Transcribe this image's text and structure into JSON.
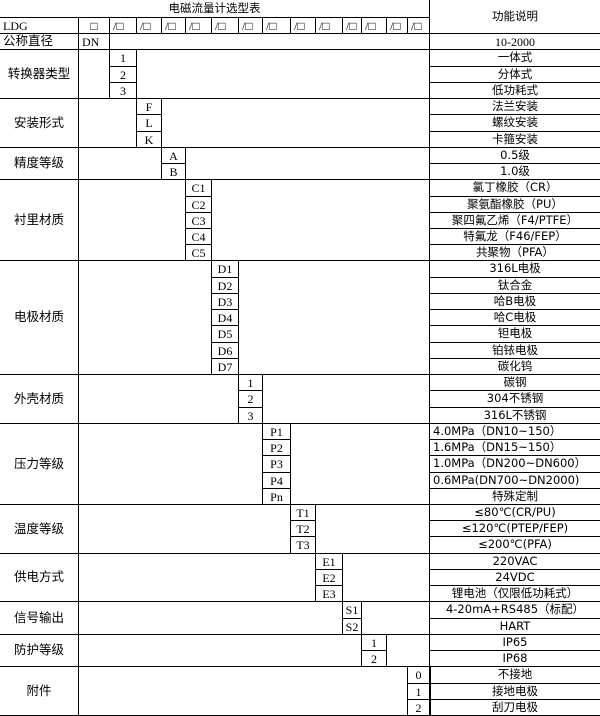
{
  "title": "电磁流量计选型表",
  "function_header": "功能说明",
  "model_row": {
    "model": "LDG",
    "first_box": "□",
    "boxes": [
      "/□",
      "/□",
      "/□",
      "/□",
      "/□",
      "/□",
      "/□",
      "/□",
      "/□",
      "/□",
      "/□",
      "/□",
      "/□"
    ]
  },
  "nominal_diameter": {
    "label": "公称直径",
    "code": "DN",
    "description": "10-2000"
  },
  "groups": [
    {
      "label": "转换器类型",
      "codes": [
        "1",
        "2",
        "3"
      ],
      "descriptions": [
        "一体式",
        "分体式",
        "低功耗式"
      ]
    },
    {
      "label": "安装形式",
      "codes": [
        "F",
        "L",
        "K"
      ],
      "descriptions": [
        "法兰安装",
        "螺纹安装",
        "卡箍安装"
      ]
    },
    {
      "label": "精度等级",
      "codes": [
        "A",
        "B"
      ],
      "descriptions": [
        "0.5级",
        "1.0级"
      ]
    },
    {
      "label": "衬里材质",
      "codes": [
        "C1",
        "C2",
        "C3",
        "C4",
        "C5"
      ],
      "descriptions": [
        "氯丁橡胶（CR）",
        "聚氨酯橡胶（PU）",
        "聚四氟乙烯（F4/PTFE）",
        "特氟龙（F46/FEP）",
        "共聚物（PFA）"
      ]
    },
    {
      "label": "电极材质",
      "codes": [
        "D1",
        "D2",
        "D3",
        "D4",
        "D5",
        "D6",
        "D7"
      ],
      "descriptions": [
        "316L电极",
        "钛合金",
        "哈B电极",
        "哈C电极",
        "钽电极",
        "铂铱电极",
        "碳化钨"
      ]
    },
    {
      "label": "外壳材质",
      "codes": [
        "1",
        "2",
        "3"
      ],
      "descriptions": [
        "碳钢",
        "304不锈钢",
        "316L不锈钢"
      ]
    },
    {
      "label": "压力等级",
      "codes": [
        "P1",
        "P2",
        "P3",
        "P4",
        "Pn"
      ],
      "descriptions": [
        "4.0MPa（DN10~150）",
        "1.6MPa（DN15~150）",
        "1.0MPa（DN200~DN600）",
        "0.6MPa(DN700~DN2000)",
        "特殊定制"
      ]
    },
    {
      "label": "温度等级",
      "codes": [
        "T1",
        "T2",
        "T3"
      ],
      "descriptions": [
        "≤80℃(CR/PU)",
        "≤120℃(PTEP/FEP)",
        "≤200℃(PFA)"
      ]
    },
    {
      "label": "供电方式",
      "codes": [
        "E1",
        "E2",
        "E3"
      ],
      "descriptions": [
        "220VAC",
        "24VDC",
        "锂电池（仅限低功耗式）"
      ]
    },
    {
      "label": "信号输出",
      "codes": [
        "S1",
        "S2"
      ],
      "descriptions": [
        "4-20mA+RS485（标配）",
        "HART"
      ]
    },
    {
      "label": "防护等级",
      "codes": [
        "1",
        "2"
      ],
      "descriptions": [
        "IP65",
        "IP68"
      ]
    },
    {
      "label": "附件",
      "codes": [
        "0",
        "1",
        "2"
      ],
      "descriptions": [
        "不接地",
        "接地电极",
        "刮刀电极"
      ]
    }
  ]
}
